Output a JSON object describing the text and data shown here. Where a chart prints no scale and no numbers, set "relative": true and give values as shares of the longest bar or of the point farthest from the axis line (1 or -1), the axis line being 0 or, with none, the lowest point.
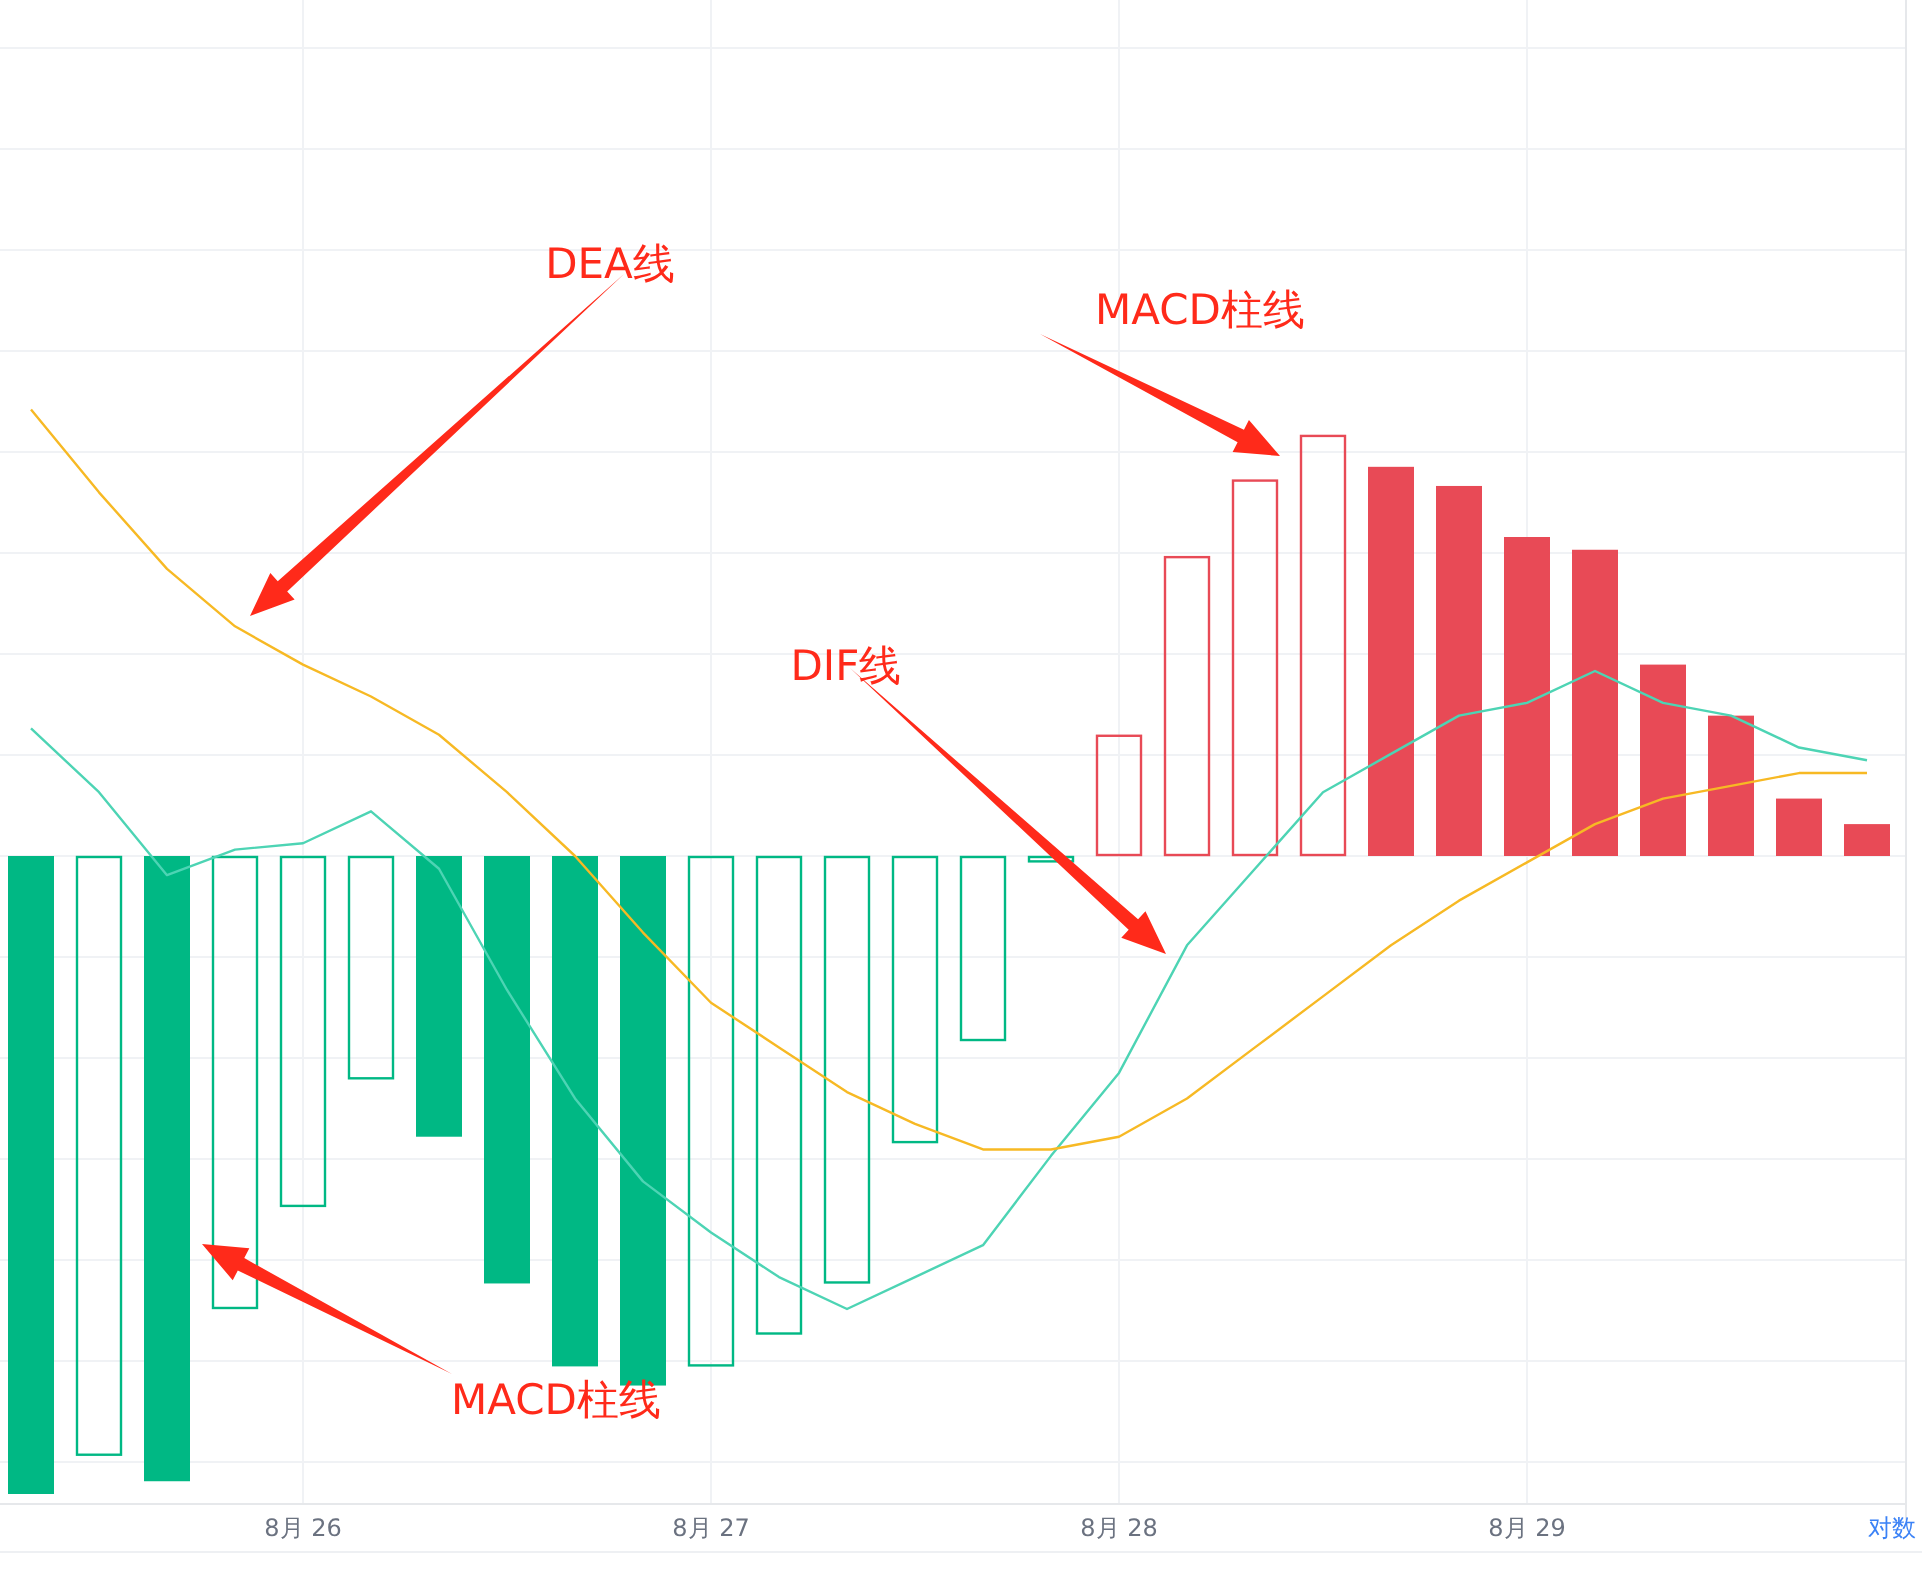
{
  "chart_data": {
    "type": "bar",
    "relative": true,
    "grid": true,
    "categories": [
      null,
      null,
      null,
      null,
      "8月 26",
      null,
      null,
      null,
      null,
      null,
      "8月 27",
      null,
      null,
      null,
      null,
      null,
      "8月 28",
      null,
      null,
      null,
      null,
      null,
      "8月 29",
      null,
      null,
      null,
      null,
      null
    ],
    "series": [
      {
        "colors": [
          "#00b884",
          "#00b884",
          "#00b884",
          "#00b884",
          "#00b884",
          "#00b884",
          "#00b884",
          "#00b884",
          "#00b884",
          "#00b884",
          "#00b884",
          "#00b884",
          "#00b884",
          "#00b884",
          "#00b884",
          "#00b884",
          "#e84a56",
          "#e84a56",
          "#e84a56",
          "#e84a56",
          "#e84a56",
          "#e84a56",
          "#e84a56",
          "#e84a56",
          "#e84a56",
          "#e84a56",
          "#e84a56",
          "#e84a56"
        ],
        "values": [
          -1.0,
          -0.94,
          -0.98,
          -0.71,
          -0.55,
          -0.35,
          -0.44,
          -0.67,
          -0.8,
          -0.83,
          -0.8,
          -0.75,
          -0.67,
          -0.45,
          -0.29,
          -0.01,
          0.19,
          0.47,
          0.59,
          0.66,
          0.61,
          0.58,
          0.5,
          0.48,
          0.3,
          0.22,
          0.09,
          0.05
        ]
      },
      {
        "type": "line",
        "color": "#4dd4b4",
        "values": [
          0.2,
          0.1,
          -0.03,
          0.01,
          0.02,
          0.07,
          -0.02,
          -0.21,
          -0.38,
          -0.51,
          -0.59,
          -0.66,
          -0.71,
          -0.66,
          -0.61,
          -0.47,
          -0.34,
          -0.14,
          -0.02,
          0.1,
          0.16,
          0.22,
          0.24,
          0.29,
          0.24,
          0.22,
          0.17,
          0.15
        ]
      },
      {
        "type": "line",
        "color": "#f7b924",
        "values": [
          0.7,
          0.57,
          0.45,
          0.36,
          0.3,
          0.25,
          0.19,
          0.1,
          0.0,
          -0.12,
          -0.23,
          -0.3,
          -0.37,
          -0.42,
          -0.46,
          -0.46,
          -0.44,
          -0.38,
          -0.3,
          -0.22,
          -0.14,
          -0.07,
          -0.01,
          0.05,
          0.09,
          0.11,
          0.13,
          0.13
        ]
      }
    ],
    "annotations": [
      "DEA线",
      "MACD柱线",
      "DIF线",
      "MACD柱线",
      "对数"
    ]
  }
}
